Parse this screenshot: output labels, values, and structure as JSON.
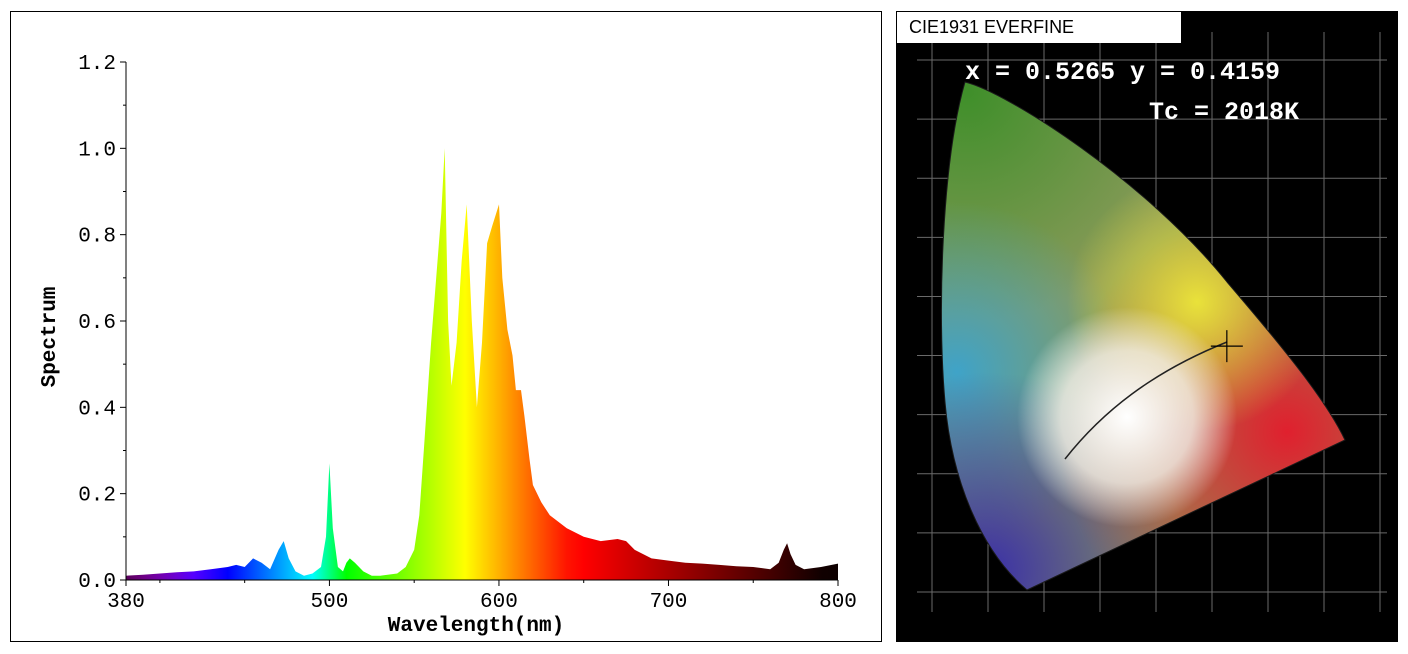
{
  "chart_data": [
    {
      "type": "area",
      "title": "",
      "xlabel": "Wavelength(nm)",
      "ylabel": "Spectrum",
      "xlim": [
        380,
        800
      ],
      "ylim": [
        0,
        1.2
      ],
      "x_ticks": [
        "380",
        "500",
        "600",
        "700",
        "800"
      ],
      "y_ticks": [
        "0.0",
        "0.2",
        "0.4",
        "0.6",
        "0.8",
        "1.0",
        "1.2"
      ],
      "fill": "wavelength-spectrum-colors",
      "grid": false,
      "series": [
        {
          "x": [
            380,
            390,
            400,
            410,
            420,
            430,
            440,
            445,
            450,
            455,
            460,
            465,
            470,
            473,
            476,
            480,
            485,
            490,
            495,
            498,
            500,
            502,
            505,
            508,
            510,
            512,
            515,
            520,
            525,
            530,
            540,
            545,
            550,
            553,
            556,
            560,
            563,
            566,
            568,
            570,
            572,
            575,
            578,
            581,
            584,
            587,
            590,
            593,
            596,
            600,
            602,
            605,
            608,
            610,
            613,
            615,
            618,
            620,
            625,
            630,
            640,
            650,
            660,
            670,
            675,
            680,
            690,
            700,
            710,
            720,
            730,
            740,
            750,
            760,
            765,
            768,
            770,
            772,
            775,
            780,
            790,
            800
          ],
          "values": [
            0.01,
            0.012,
            0.015,
            0.018,
            0.02,
            0.025,
            0.03,
            0.035,
            0.03,
            0.05,
            0.04,
            0.025,
            0.07,
            0.09,
            0.05,
            0.02,
            0.01,
            0.015,
            0.03,
            0.1,
            0.27,
            0.12,
            0.03,
            0.02,
            0.04,
            0.05,
            0.04,
            0.02,
            0.01,
            0.01,
            0.015,
            0.03,
            0.07,
            0.15,
            0.32,
            0.55,
            0.7,
            0.85,
            1.0,
            0.6,
            0.45,
            0.55,
            0.74,
            0.87,
            0.6,
            0.4,
            0.55,
            0.78,
            0.82,
            0.87,
            0.7,
            0.58,
            0.52,
            0.44,
            0.44,
            0.38,
            0.28,
            0.22,
            0.18,
            0.15,
            0.12,
            0.1,
            0.09,
            0.095,
            0.09,
            0.07,
            0.05,
            0.045,
            0.04,
            0.038,
            0.035,
            0.032,
            0.03,
            0.025,
            0.04,
            0.07,
            0.085,
            0.06,
            0.035,
            0.025,
            0.03,
            0.038
          ]
        }
      ]
    },
    {
      "type": "scatter",
      "title": "CIE1931 EVERFINE",
      "readout_xy": "x = 0.5265 y = 0.4159",
      "readout_tc": "Tc = 2018K",
      "x": [
        0.5265
      ],
      "y": [
        0.4159
      ],
      "xlim": [
        0,
        0.8
      ],
      "ylim": [
        0,
        0.9
      ],
      "marker": "crosshair",
      "background": "cie1931-chromaticity-diagram"
    }
  ]
}
